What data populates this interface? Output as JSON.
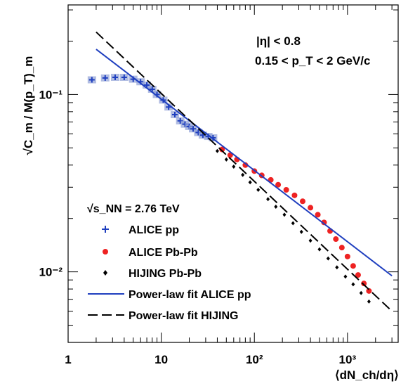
{
  "chart_data": {
    "type": "scatter",
    "xscale": "log",
    "yscale": "log",
    "xlim": [
      1,
      3500
    ],
    "ylim": [
      0.004,
      0.32
    ],
    "xticks": [
      {
        "v": 1,
        "label": "1"
      },
      {
        "v": 10,
        "label": "10"
      },
      {
        "v": 100,
        "label": "10²"
      },
      {
        "v": 1000,
        "label": "10³"
      }
    ],
    "yticks": [
      {
        "v": 0.01,
        "label": "10⁻²"
      },
      {
        "v": 0.1,
        "label": "10⁻¹"
      }
    ],
    "xlabel": "⟨dN_ch/dη⟩",
    "ylabel": "√C_m / M(p_T)_m",
    "annotations": [
      "|η| < 0.8",
      "0.15 < p_T < 2 GeV/c"
    ],
    "legend_header": "√s_NN = 2.76 TeV",
    "legend_placement": "bottom-left",
    "series": [
      {
        "name": "ALICE pp",
        "marker": "plus",
        "color": "#1f3fbf",
        "x": [
          1.8,
          2.5,
          3.2,
          4.0,
          5.0,
          6.0,
          7.0,
          8.0,
          9.0,
          10.5,
          12.0,
          14.0,
          16.0,
          18.0,
          20.0,
          22.0,
          25.0,
          28.0,
          32.0,
          36.0
        ],
        "y": [
          0.121,
          0.124,
          0.125,
          0.125,
          0.122,
          0.118,
          0.113,
          0.107,
          0.1,
          0.093,
          0.085,
          0.077,
          0.071,
          0.068,
          0.066,
          0.064,
          0.061,
          0.059,
          0.058,
          0.057
        ]
      },
      {
        "name": "ALICE Pb-Pb",
        "marker": "circle",
        "color": "#ee2222",
        "x": [
          45,
          55,
          65,
          80,
          100,
          120,
          150,
          180,
          220,
          270,
          330,
          400,
          480,
          560,
          650,
          750,
          870,
          1000,
          1150,
          1300,
          1500,
          1700
        ],
        "y": [
          0.049,
          0.0455,
          0.043,
          0.04,
          0.037,
          0.035,
          0.033,
          0.031,
          0.029,
          0.027,
          0.025,
          0.023,
          0.021,
          0.019,
          0.017,
          0.0153,
          0.0137,
          0.0122,
          0.0108,
          0.0096,
          0.0086,
          0.0078
        ]
      },
      {
        "name": "HIJING Pb-Pb",
        "marker": "diamond",
        "color": "#000000",
        "x": [
          40,
          50,
          60,
          75,
          90,
          110,
          140,
          170,
          210,
          260,
          320,
          400,
          500,
          620,
          770,
          950,
          1150,
          1400,
          1700
        ],
        "y": [
          0.048,
          0.043,
          0.0392,
          0.0352,
          0.032,
          0.029,
          0.0257,
          0.0233,
          0.021,
          0.0188,
          0.0168,
          0.015,
          0.0134,
          0.0119,
          0.0106,
          0.0094,
          0.0085,
          0.0076,
          0.0068
        ]
      },
      {
        "name": "Power-law fit ALICE pp",
        "line": "solid",
        "color": "#1f3fbf",
        "x": [
          2,
          3000
        ],
        "y": [
          0.18,
          0.0095
        ]
      },
      {
        "name": "Power-law fit HIJING",
        "line": "dashed",
        "color": "#000000",
        "x": [
          2,
          3000
        ],
        "y": [
          0.225,
          0.006
        ]
      }
    ]
  }
}
